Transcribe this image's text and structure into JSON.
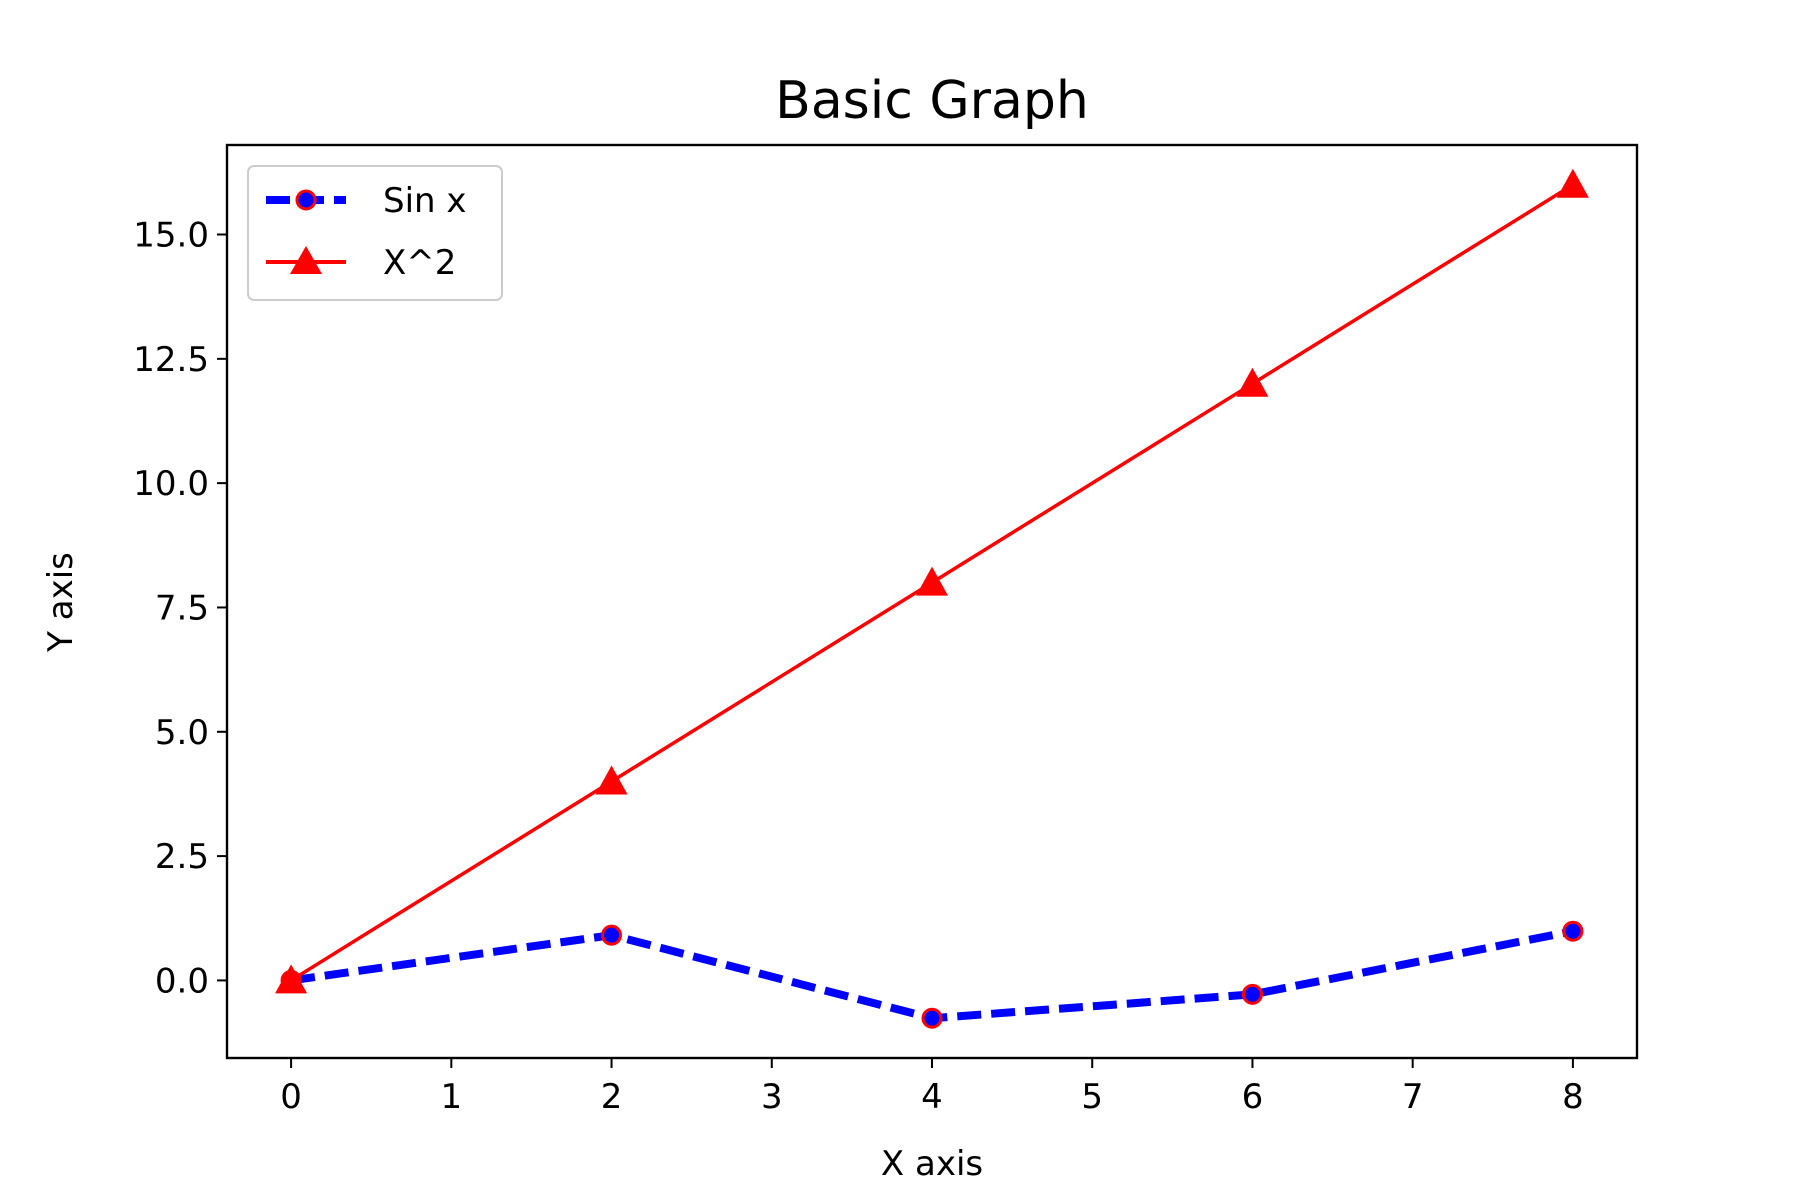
{
  "chart_data": {
    "type": "line",
    "title": "Basic Graph",
    "xlabel": "X axis",
    "ylabel": "Y axis",
    "xlim": [
      -0.4,
      8.4
    ],
    "ylim": [
      -1.56,
      16.8
    ],
    "xticks": [
      0,
      1,
      2,
      3,
      4,
      5,
      6,
      7,
      8
    ],
    "xtick_labels": [
      "0",
      "1",
      "2",
      "3",
      "4",
      "5",
      "6",
      "7",
      "8"
    ],
    "yticks": [
      0,
      2.5,
      5,
      7.5,
      10,
      12.5,
      15
    ],
    "ytick_labels": [
      "0.0",
      "2.5",
      "5.0",
      "7.5",
      "10.0",
      "12.5",
      "15.0"
    ],
    "grid": false,
    "legend_position": "top-left",
    "series": [
      {
        "name": "Sin x",
        "x": [
          0,
          2,
          4,
          6,
          8
        ],
        "y": [
          0,
          0.91,
          -0.76,
          -0.28,
          0.99
        ],
        "color": "#0000ff",
        "marker_edge_color": "#ff0000",
        "line_style": "dashed",
        "marker": "circle"
      },
      {
        "name": "X^2",
        "x": [
          0,
          2,
          4,
          6,
          8
        ],
        "y": [
          0,
          4,
          8,
          12,
          16
        ],
        "color": "#ff0000",
        "line_style": "solid",
        "marker": "triangle"
      }
    ]
  }
}
